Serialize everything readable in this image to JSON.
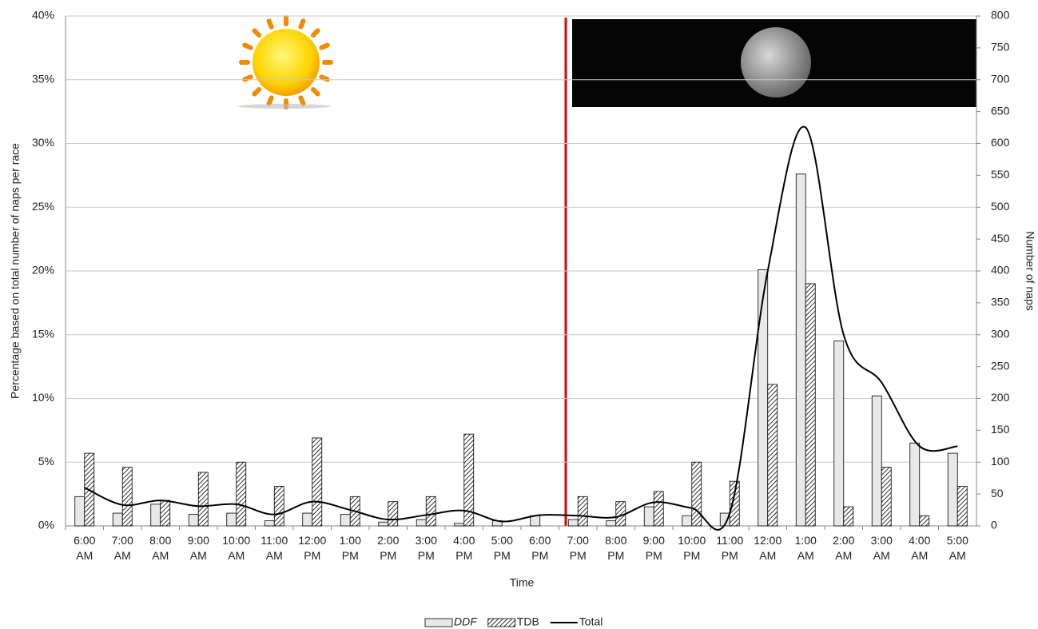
{
  "chart_data": {
    "type": "bar",
    "x_label": "Time",
    "y_label": "Percentage based on total number of naps per race",
    "y2_label": "Number of naps",
    "categories": [
      "6:00 AM",
      "7:00 AM",
      "8:00 AM",
      "9:00 AM",
      "10:00 AM",
      "11:00 AM",
      "12:00 PM",
      "1:00 PM",
      "2:00 PM",
      "3:00 PM",
      "4:00 PM",
      "5:00 PM",
      "6:00 PM",
      "7:00 PM",
      "8:00 PM",
      "9:00 PM",
      "10:00 PM",
      "11:00 PM",
      "12:00 AM",
      "1:00 AM",
      "2:00 AM",
      "3:00 AM",
      "4:00 AM",
      "5:00 AM"
    ],
    "series": [
      {
        "name": "DDF",
        "color": "#e8e8e8",
        "values": [
          2.3,
          1.0,
          1.7,
          0.9,
          1.0,
          0.4,
          1.0,
          0.9,
          0.3,
          0.5,
          0.2,
          0.4,
          0.8,
          0.5,
          0.4,
          1.5,
          0.8,
          1.0,
          20.1,
          27.6,
          14.5,
          10.2,
          6.5,
          5.7
        ]
      },
      {
        "name": "TDB",
        "color": "#000000",
        "values": [
          5.7,
          4.6,
          2.0,
          4.2,
          5.0,
          3.1,
          6.9,
          2.3,
          1.9,
          2.3,
          7.2,
          0,
          0,
          2.3,
          1.9,
          2.7,
          5.0,
          3.5,
          11.1,
          19.0,
          1.5,
          4.6,
          0.8,
          3.1
        ]
      },
      {
        "name": "Total",
        "type": "line",
        "axis": "y2",
        "color": "#000000",
        "values": [
          60,
          33,
          40,
          31,
          34,
          18,
          38,
          25,
          10,
          17,
          24,
          7,
          17,
          16,
          14,
          37,
          28,
          20,
          400,
          625,
          300,
          225,
          125,
          125
        ]
      }
    ],
    "ylim": [
      0,
      40
    ],
    "yticks": [
      {
        "value": 0,
        "label": "0%"
      },
      {
        "value": 5,
        "label": "5%"
      },
      {
        "value": 10,
        "label": "10%"
      },
      {
        "value": 15,
        "label": "15%"
      },
      {
        "value": 20,
        "label": "20%"
      },
      {
        "value": 25,
        "label": "25%"
      },
      {
        "value": 30,
        "label": "30%"
      },
      {
        "value": 35,
        "label": "35%"
      },
      {
        "value": 40,
        "label": "40%"
      }
    ],
    "y2lim": [
      0,
      800
    ],
    "y2ticks": [
      0,
      50,
      100,
      150,
      200,
      250,
      300,
      350,
      400,
      450,
      500,
      550,
      600,
      650,
      700,
      750,
      800
    ],
    "grid": true,
    "legend": "bottom"
  }
}
